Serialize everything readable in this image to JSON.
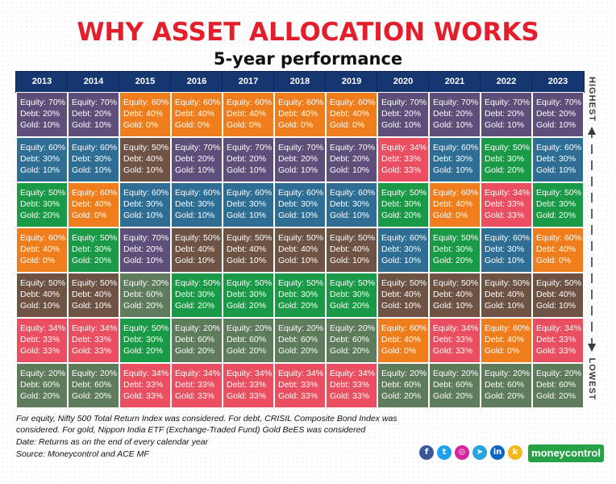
{
  "title": "WHY ASSET ALLOCATION WORKS",
  "subtitle": "5-year performance",
  "colors": {
    "e70d20g10": "#5e4e7a",
    "e60d30g10": "#2e6e94",
    "e50d30g20": "#1a9a46",
    "e60d40g0": "#f07d1c",
    "e50d40g10": "#6e5344",
    "e34d33g33": "#ea4f61",
    "e20d60g20": "#5e7b5c",
    "header": "#16366f"
  },
  "chart_data": {
    "type": "table",
    "columns": [
      "2013",
      "2014",
      "2015",
      "2016",
      "2017",
      "2018",
      "2019",
      "2020",
      "2021",
      "2022",
      "2023"
    ],
    "row_order_labels": {
      "top": "HIGHEST",
      "bottom": "LOWEST"
    },
    "rows": [
      [
        {
          "lines": [
            "Equity: 70%",
            "Debt: 20%",
            "Gold: 10%"
          ],
          "key": "e70d20g10"
        },
        {
          "lines": [
            "Equity: 70%",
            "Debt: 20%",
            "Gold: 10%"
          ],
          "key": "e70d20g10"
        },
        {
          "lines": [
            "Equity: 60%",
            "Debt: 40%",
            "Gold: 0%"
          ],
          "key": "e60d40g0"
        },
        {
          "lines": [
            "Equity: 60%",
            "Debt: 40%",
            "Gold: 0%"
          ],
          "key": "e60d40g0"
        },
        {
          "lines": [
            "Equity: 60%",
            "Debt: 40%",
            "Gold: 0%"
          ],
          "key": "e60d40g0"
        },
        {
          "lines": [
            "Equity: 60%",
            "Debt: 40%",
            "Gold: 0%"
          ],
          "key": "e60d40g0"
        },
        {
          "lines": [
            "Equity: 60%",
            "Debt: 40%",
            "Gold: 0%"
          ],
          "key": "e60d40g0"
        },
        {
          "lines": [
            "Equity: 70%",
            "Debt: 20%",
            "Gold: 10%"
          ],
          "key": "e70d20g10"
        },
        {
          "lines": [
            "Equity: 70%",
            "Debt: 20%",
            "Gold: 10%"
          ],
          "key": "e70d20g10"
        },
        {
          "lines": [
            "Equity: 70%",
            "Debt: 20%",
            "Gold: 10%"
          ],
          "key": "e70d20g10"
        },
        {
          "lines": [
            "Equity: 70%",
            "Debt: 20%",
            "Gold: 10%"
          ],
          "key": "e70d20g10"
        }
      ],
      [
        {
          "lines": [
            "Equity: 60%",
            "Debt: 30%",
            "Gold: 10%"
          ],
          "key": "e60d30g10"
        },
        {
          "lines": [
            "Equity: 60%",
            "Debt: 30%",
            "Gold: 10%"
          ],
          "key": "e60d30g10"
        },
        {
          "lines": [
            "Equity: 50%",
            "Debt: 40%",
            "Gold: 10%"
          ],
          "key": "e50d40g10"
        },
        {
          "lines": [
            "Equity: 70%",
            "Debt: 20%",
            "Gold: 10%"
          ],
          "key": "e70d20g10"
        },
        {
          "lines": [
            "Equity: 70%",
            "Debt: 20%",
            "Gold: 10%"
          ],
          "key": "e70d20g10"
        },
        {
          "lines": [
            "Equity: 70%",
            "Debt: 20%",
            "Gold: 10%"
          ],
          "key": "e70d20g10"
        },
        {
          "lines": [
            "Equity: 70%",
            "Debt: 20%",
            "Gold: 10%"
          ],
          "key": "e70d20g10"
        },
        {
          "lines": [
            "Equity: 34%",
            "Debt: 33%",
            "Gold: 33%"
          ],
          "key": "e34d33g33"
        },
        {
          "lines": [
            "Equity: 60%",
            "Debt: 30%",
            "Gold: 10%"
          ],
          "key": "e60d30g10"
        },
        {
          "lines": [
            "Equity: 50%",
            "Debt: 30%",
            "Gold: 20%"
          ],
          "key": "e50d30g20"
        },
        {
          "lines": [
            "Equity: 60%",
            "Debt: 30%",
            "Gold: 10%"
          ],
          "key": "e60d30g10"
        }
      ],
      [
        {
          "lines": [
            "Equity: 50%",
            "Debt: 30%",
            "Gold: 20%"
          ],
          "key": "e50d30g20"
        },
        {
          "lines": [
            "Equity: 60%",
            "Debt: 40%",
            "Gold: 0%"
          ],
          "key": "e60d40g0"
        },
        {
          "lines": [
            "Equity: 60%",
            "Debt: 30%",
            "Gold: 10%"
          ],
          "key": "e60d30g10"
        },
        {
          "lines": [
            "Equity: 60%",
            "Debt: 30%",
            "Gold: 10%"
          ],
          "key": "e60d30g10"
        },
        {
          "lines": [
            "Equity: 60%",
            "Debt: 30%",
            "Gold: 10%"
          ],
          "key": "e60d30g10"
        },
        {
          "lines": [
            "Equity: 60%",
            "Debt: 30%",
            "Gold: 10%"
          ],
          "key": "e60d30g10"
        },
        {
          "lines": [
            "Equity: 60%",
            "Debt: 30%",
            "Gold: 10%"
          ],
          "key": "e60d30g10"
        },
        {
          "lines": [
            "Equity: 50%",
            "Debt: 30%",
            "Gold: 20%"
          ],
          "key": "e50d30g20"
        },
        {
          "lines": [
            "Equity: 60%",
            "Debt: 40%",
            "Gold: 0%"
          ],
          "key": "e60d40g0"
        },
        {
          "lines": [
            "Equity: 34%",
            "Debt: 33%",
            "Gold: 33%"
          ],
          "key": "e34d33g33"
        },
        {
          "lines": [
            "Equity: 50%",
            "Debt: 30%",
            "Gold: 20%"
          ],
          "key": "e50d30g20"
        }
      ],
      [
        {
          "lines": [
            "Equity: 60%",
            "Debt: 40%",
            "Gold: 0%"
          ],
          "key": "e60d40g0"
        },
        {
          "lines": [
            "Equity: 50%",
            "Debt: 30%",
            "Gold: 20%"
          ],
          "key": "e50d30g20"
        },
        {
          "lines": [
            "Equity: 70%",
            "Debt: 20%",
            "Gold: 10%"
          ],
          "key": "e70d20g10"
        },
        {
          "lines": [
            "Equity: 50%",
            "Debt: 40%",
            "Gold: 10%"
          ],
          "key": "e50d40g10"
        },
        {
          "lines": [
            "Equity: 50%",
            "Debt: 40%",
            "Gold: 10%"
          ],
          "key": "e50d40g10"
        },
        {
          "lines": [
            "Equity: 50%",
            "Debt: 40%",
            "Gold: 10%"
          ],
          "key": "e50d40g10"
        },
        {
          "lines": [
            "Equity: 50%",
            "Debt: 40%",
            "Gold: 10%"
          ],
          "key": "e50d40g10"
        },
        {
          "lines": [
            "Equity: 60%",
            "Debt: 30%",
            "Gold: 10%"
          ],
          "key": "e60d30g10"
        },
        {
          "lines": [
            "Equity: 50%",
            "Debt: 30%",
            "Gold: 20%"
          ],
          "key": "e50d30g20"
        },
        {
          "lines": [
            "Equity: 60%",
            "Debt: 30%",
            "Gold: 10%"
          ],
          "key": "e60d30g10"
        },
        {
          "lines": [
            "Equity: 60%",
            "Debt: 40%",
            "Gold: 0%"
          ],
          "key": "e60d40g0"
        }
      ],
      [
        {
          "lines": [
            "Equity: 50%",
            "Debt: 40%",
            "Gold: 10%"
          ],
          "key": "e50d40g10"
        },
        {
          "lines": [
            "Equity: 50%",
            "Debt: 40%",
            "Gold: 10%"
          ],
          "key": "e50d40g10"
        },
        {
          "lines": [
            "Equity: 20%",
            "Debt: 60%",
            "Gold: 20%"
          ],
          "key": "e20d60g20"
        },
        {
          "lines": [
            "Equity: 50%",
            "Debt: 30%",
            "Gold: 20%"
          ],
          "key": "e50d30g20"
        },
        {
          "lines": [
            "Equity: 50%",
            "Debt: 30%",
            "Gold: 20%"
          ],
          "key": "e50d30g20"
        },
        {
          "lines": [
            "Equity: 50%",
            "Debt: 30%",
            "Gold: 20%"
          ],
          "key": "e50d30g20"
        },
        {
          "lines": [
            "Equity: 50%",
            "Debt: 30%",
            "Gold: 20%"
          ],
          "key": "e50d30g20"
        },
        {
          "lines": [
            "Equity: 50%",
            "Debt: 40%",
            "Gold: 10%"
          ],
          "key": "e50d40g10"
        },
        {
          "lines": [
            "Equity: 50%",
            "Debt: 40%",
            "Gold: 10%"
          ],
          "key": "e50d40g10"
        },
        {
          "lines": [
            "Equity: 50%",
            "Debt: 40%",
            "Gold: 10%"
          ],
          "key": "e50d40g10"
        },
        {
          "lines": [
            "Equity: 50%",
            "Debt: 40%",
            "Gold: 10%"
          ],
          "key": "e50d40g10"
        }
      ],
      [
        {
          "lines": [
            "Equity: 34%",
            "Debt: 33%",
            "Gold: 33%"
          ],
          "key": "e34d33g33"
        },
        {
          "lines": [
            "Equity: 34%",
            "Debt: 33%",
            "Gold: 33%"
          ],
          "key": "e34d33g33"
        },
        {
          "lines": [
            "Equity: 50%",
            "Debt: 30%",
            "Gold: 20%"
          ],
          "key": "e50d30g20"
        },
        {
          "lines": [
            "Equity: 20%",
            "Debt: 60%",
            "Gold: 20%"
          ],
          "key": "e20d60g20"
        },
        {
          "lines": [
            "Equity: 20%",
            "Debt: 60%",
            "Gold: 20%"
          ],
          "key": "e20d60g20"
        },
        {
          "lines": [
            "Equity: 20%",
            "Debt: 60%",
            "Gold: 20%"
          ],
          "key": "e20d60g20"
        },
        {
          "lines": [
            "Equity: 20%",
            "Debt: 60%",
            "Gold: 20%"
          ],
          "key": "e20d60g20"
        },
        {
          "lines": [
            "Equity: 60%",
            "Debt: 40%",
            "Gold: 0%"
          ],
          "key": "e60d40g0"
        },
        {
          "lines": [
            "Equity: 34%",
            "Debt: 33%",
            "Gold: 33%"
          ],
          "key": "e34d33g33"
        },
        {
          "lines": [
            "Equity: 60%",
            "Debt: 40%",
            "Gold: 0%"
          ],
          "key": "e60d40g0"
        },
        {
          "lines": [
            "Equity: 34%",
            "Debt: 33%",
            "Gold: 33%"
          ],
          "key": "e34d33g33"
        }
      ],
      [
        {
          "lines": [
            "Equity: 20%",
            "Debt: 60%",
            "Gold: 20%"
          ],
          "key": "e20d60g20"
        },
        {
          "lines": [
            "Equity: 20%",
            "Debt: 60%",
            "Gold: 20%"
          ],
          "key": "e20d60g20"
        },
        {
          "lines": [
            "Equity: 34%",
            "Debt: 33%",
            "Gold: 33%"
          ],
          "key": "e34d33g33"
        },
        {
          "lines": [
            "Equity: 34%",
            "Debt: 33%",
            "Gold: 33%"
          ],
          "key": "e34d33g33"
        },
        {
          "lines": [
            "Equity: 34%",
            "Debt: 33%",
            "Gold: 33%"
          ],
          "key": "e34d33g33"
        },
        {
          "lines": [
            "Equity: 34%",
            "Debt: 33%",
            "Gold: 33%"
          ],
          "key": "e34d33g33"
        },
        {
          "lines": [
            "Equity: 34%",
            "Debt: 33%",
            "Gold: 33%"
          ],
          "key": "e34d33g33"
        },
        {
          "lines": [
            "Equity: 20%",
            "Debt: 60%",
            "Gold: 20%"
          ],
          "key": "e20d60g20"
        },
        {
          "lines": [
            "Equity: 20%",
            "Debt: 60%",
            "Gold: 20%"
          ],
          "key": "e20d60g20"
        },
        {
          "lines": [
            "Equity: 20%",
            "Debt: 60%",
            "Gold: 20%"
          ],
          "key": "e20d60g20"
        },
        {
          "lines": [
            "Equity: 20%",
            "Debt: 60%",
            "Gold: 20%"
          ],
          "key": "e20d60g20"
        }
      ]
    ]
  },
  "notes": [
    "For equity, Nifty 500 Total Return Index was considered. For debt, CRISIL Composite Bond Index was considered. For gold, Nippon India ETF (Exchange-Traded Fund) Gold BeES was considered",
    "Date: Returns as on the end of every calendar year",
    "Source: Moneycontrol and ACE MF"
  ],
  "social": [
    {
      "icon": "facebook-icon",
      "glyph": "f",
      "color": "#3b5998"
    },
    {
      "icon": "twitter-icon",
      "glyph": "t",
      "color": "#1da1f2"
    },
    {
      "icon": "instagram-icon",
      "glyph": "◎",
      "color": "#d6249f"
    },
    {
      "icon": "telegram-icon",
      "glyph": "➤",
      "color": "#2aa3df"
    },
    {
      "icon": "linkedin-icon",
      "glyph": "in",
      "color": "#0a66c2"
    },
    {
      "icon": "koo-icon",
      "glyph": "k",
      "color": "#f5b81c"
    }
  ],
  "brand": "moneycontrol"
}
